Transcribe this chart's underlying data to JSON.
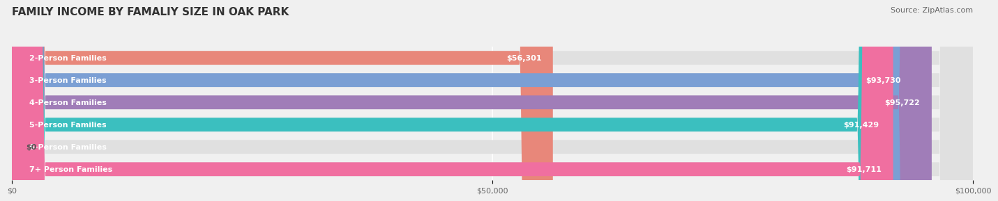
{
  "title": "FAMILY INCOME BY FAMALIY SIZE IN OAK PARK",
  "source": "Source: ZipAtlas.com",
  "categories": [
    "2-Person Families",
    "3-Person Families",
    "4-Person Families",
    "5-Person Families",
    "6-Person Families",
    "7+ Person Families"
  ],
  "values": [
    56301,
    93730,
    95722,
    91429,
    0,
    91711
  ],
  "labels": [
    "$56,301",
    "$93,730",
    "$95,722",
    "$91,429",
    "$0",
    "$91,711"
  ],
  "bar_colors": [
    "#E8877A",
    "#7B9FD4",
    "#A07DB8",
    "#3BBFBF",
    "#B0B8E8",
    "#F06FA0"
  ],
  "bg_color": "#F0F0F0",
  "bar_bg_color": "#E0E0E0",
  "xlim": [
    0,
    100000
  ],
  "xticks": [
    0,
    50000,
    100000
  ],
  "xtick_labels": [
    "$0",
    "$50,000",
    "$100,000"
  ],
  "bar_height": 0.62,
  "label_inside_threshold": 5000,
  "title_fontsize": 11,
  "source_fontsize": 8,
  "label_fontsize": 8,
  "tick_fontsize": 8,
  "category_fontsize": 8
}
